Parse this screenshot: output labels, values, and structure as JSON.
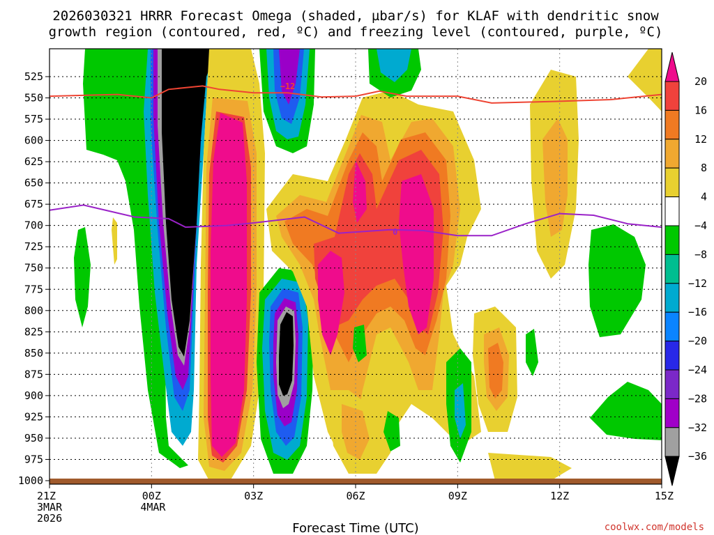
{
  "title_line1": "2026030321 HRRR Forecast Omega (shaded, µbar/s) for KLAF with dendritic snow",
  "title_line2": "growth region (contoured, red, ºC) and freezing level (contoured, purple, ºC)",
  "x_axis_label": "Forecast Time (UTC)",
  "credit": "coolwx.com/models",
  "chart_data": {
    "type": "heatmap",
    "title": "2026030321 HRRR Forecast Omega (shaded, µbar/s) for KLAF with dendritic snow growth region (contoured, red, ºC) and freezing level (contoured, purple, ºC)",
    "xlabel": "Forecast Time (UTC)",
    "ylabel": "",
    "x_ticks": [
      {
        "hour": 0,
        "label": "21Z",
        "sub1": "3MAR",
        "sub2": "2026"
      },
      {
        "hour": 3,
        "label": "00Z",
        "sub1": "4MAR",
        "sub2": ""
      },
      {
        "hour": 6,
        "label": "03Z",
        "sub1": "",
        "sub2": ""
      },
      {
        "hour": 9,
        "label": "06Z",
        "sub1": "",
        "sub2": ""
      },
      {
        "hour": 12,
        "label": "09Z",
        "sub1": "",
        "sub2": ""
      },
      {
        "hour": 15,
        "label": "12Z",
        "sub1": "",
        "sub2": ""
      },
      {
        "hour": 18,
        "label": "15Z",
        "sub1": "",
        "sub2": ""
      }
    ],
    "xlim_hours": [
      0,
      18
    ],
    "y_axis": "pressure (hPa), inverted",
    "ylim": [
      1000,
      500
    ],
    "y_ticks": [
      525,
      550,
      575,
      600,
      625,
      650,
      675,
      700,
      725,
      750,
      775,
      800,
      825,
      850,
      875,
      900,
      925,
      950,
      975,
      1000
    ],
    "grid": true,
    "colorbar": {
      "levels": [
        -36,
        -32,
        -28,
        -24,
        -20,
        -16,
        -12,
        -8,
        -4,
        4,
        8,
        12,
        16,
        20
      ],
      "labels": [
        "20",
        "16",
        "12",
        "8",
        "4",
        "−4",
        "−8",
        "−12",
        "−16",
        "−20",
        "−24",
        "−28",
        "−32",
        "−36"
      ],
      "colors_top_to_bottom": [
        "#ef0c8c",
        "#f0423c",
        "#f07a22",
        "#f0a830",
        "#e8d030",
        "#ffffff",
        "#00c800",
        "#00be90",
        "#00aad0",
        "#0a84ff",
        "#2828e8",
        "#7b28c8",
        "#a000c8",
        "#a0a0a0",
        "#000000"
      ]
    },
    "contours": [
      {
        "name": "dendritic snow growth level (-12 °C)",
        "color": "#ee4433",
        "label": "−12",
        "label_at": {
          "hour": 7.0,
          "p": 542
        },
        "points": [
          [
            0,
            548
          ],
          [
            2,
            546
          ],
          [
            3,
            550
          ],
          [
            3.5,
            540
          ],
          [
            4.5,
            536
          ],
          [
            5,
            540
          ],
          [
            6,
            544
          ],
          [
            7,
            544
          ],
          [
            8,
            549
          ],
          [
            9,
            548
          ],
          [
            9.7,
            542
          ],
          [
            10.5,
            548
          ],
          [
            12,
            548
          ],
          [
            13,
            556
          ],
          [
            15,
            554
          ],
          [
            16.5,
            552
          ],
          [
            18,
            546
          ]
        ]
      },
      {
        "name": "freezing level (0 °C)",
        "color": "#9a22c8",
        "label": "0",
        "label_at": {
          "hour": 10,
          "p": 707
        },
        "points": [
          [
            0,
            682
          ],
          [
            1,
            676
          ],
          [
            2.5,
            690
          ],
          [
            3.5,
            692
          ],
          [
            4,
            702
          ],
          [
            5.2,
            700
          ],
          [
            6,
            697
          ],
          [
            7.5,
            690
          ],
          [
            8.5,
            709
          ],
          [
            10,
            705
          ],
          [
            11,
            706
          ],
          [
            12,
            712
          ],
          [
            13,
            712
          ],
          [
            14,
            698
          ],
          [
            15,
            686
          ],
          [
            16,
            688
          ],
          [
            17,
            698
          ],
          [
            18,
            702
          ]
        ]
      }
    ],
    "ground": {
      "color": "#a05a2c",
      "p_top": 995
    }
  }
}
